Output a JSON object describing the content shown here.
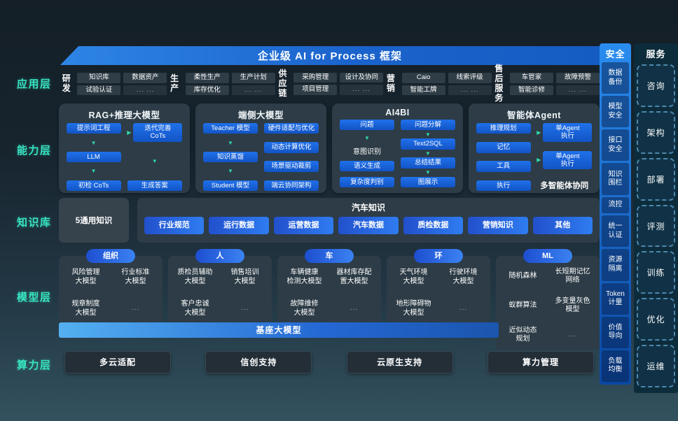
{
  "banner": {
    "title": "企业级 AI for Process 框架"
  },
  "icons": {
    "arrow_down": "▼",
    "arrow_right": "▶"
  },
  "layer_labels": [
    "应用层",
    "能力层",
    "知识库",
    "模型层",
    "算力层"
  ],
  "app": {
    "sections": [
      {
        "label": "研发",
        "cols": [
          [
            "知识库",
            "试验认证"
          ],
          [
            "数据资产",
            "... ..."
          ]
        ]
      },
      {
        "label": "生产",
        "cols": [
          [
            "柔性生产",
            "库存优化"
          ],
          [
            "生产计划",
            "... ..."
          ]
        ]
      },
      {
        "label": "供应\n链",
        "cols": [
          [
            "采购管理",
            "项目管理"
          ],
          [
            "设计及协同",
            "... ..."
          ]
        ]
      },
      {
        "label": "营销",
        "cols": [
          [
            "Caio",
            "智能工牌"
          ],
          [
            "线索评级",
            "... ..."
          ]
        ]
      },
      {
        "label": "售后\n服务",
        "cols": [
          [
            "车管家",
            "智能诊修"
          ],
          [
            "故障预警",
            "... ..."
          ]
        ]
      }
    ]
  },
  "capability": {
    "cards": [
      {
        "title": "RAG+推理大模型",
        "cols": [
          {
            "items": [
              {
                "t": "box",
                "v": "提示词工程"
              },
              {
                "t": "darr"
              },
              {
                "t": "box",
                "v": "LLM"
              },
              {
                "t": "darr"
              },
              {
                "t": "box",
                "v": "初检 CoTs"
              }
            ]
          },
          {
            "items": [
              {
                "t": "boxr",
                "v": "迭代完善\nCoTs"
              },
              {
                "t": "darr"
              },
              {
                "t": "box",
                "v": "生成答案"
              }
            ]
          }
        ]
      },
      {
        "title": "端侧大模型",
        "cols": [
          {
            "items": [
              {
                "t": "box",
                "v": "Teacher 模型"
              },
              {
                "t": "darr"
              },
              {
                "t": "box",
                "v": "知识蒸馏"
              },
              {
                "t": "darr"
              },
              {
                "t": "box",
                "v": "Student 模型"
              }
            ]
          },
          {
            "items": [
              {
                "t": "box",
                "v": "硬件适配与优化"
              },
              {
                "t": "box",
                "v": "动态计算优化"
              },
              {
                "t": "box",
                "v": "场景驱动裁剪"
              },
              {
                "t": "box",
                "v": "端云协同架构"
              }
            ]
          }
        ]
      },
      {
        "title": "AI4BI",
        "cols": [
          {
            "items": [
              {
                "t": "box",
                "v": "问题"
              },
              {
                "t": "darr"
              },
              {
                "t": "text",
                "v": "意图识别"
              },
              {
                "t": "box",
                "v": "语义生成"
              },
              {
                "t": "box",
                "v": "复杂度判别"
              }
            ]
          },
          {
            "items": [
              {
                "t": "box",
                "v": "问题分解"
              },
              {
                "t": "darr"
              },
              {
                "t": "box",
                "v": "Text2SQL"
              },
              {
                "t": "darr"
              },
              {
                "t": "box",
                "v": "总结结果"
              },
              {
                "t": "darr"
              },
              {
                "t": "box",
                "v": "图展示"
              }
            ]
          }
        ]
      },
      {
        "title": "智能体Agent",
        "cols": [
          {
            "items": [
              {
                "t": "box",
                "v": "推理规划"
              },
              {
                "t": "box",
                "v": "记忆"
              },
              {
                "t": "box",
                "v": "工具"
              },
              {
                "t": "box",
                "v": "执行"
              }
            ]
          },
          {
            "items": [
              {
                "t": "boxr",
                "v": "单Agent\n执行"
              },
              {
                "t": "boxr",
                "v": "单Agent\n执行"
              },
              {
                "t": "note",
                "v": "多智能体协同"
              }
            ]
          }
        ]
      }
    ]
  },
  "knowledge": {
    "left": "5通用知识",
    "title": "汽车知识",
    "pills": [
      "行业规范",
      "运行数据",
      "运营数据",
      "汽车数据",
      "质检数据",
      "营销知识",
      "其他"
    ]
  },
  "model": {
    "groups": [
      {
        "pill": "组织",
        "items": [
          "风险管理\n大模型",
          "行业标准\n大模型",
          "规章制度\n大模型",
          "..."
        ]
      },
      {
        "pill": "人",
        "items": [
          "质检员辅助\n大模型",
          "销售培训\n大模型",
          "客户忠诚\n大模型",
          "..."
        ]
      },
      {
        "pill": "车",
        "items": [
          "车辆健康\n检测大模型",
          "器材库存配\n置大模型",
          "故障维修\n大模型",
          "..."
        ]
      },
      {
        "pill": "环",
        "items": [
          "天气环境\n大模型",
          "行驶环境\n大模型",
          "地形障碍物\n大模型",
          "..."
        ]
      },
      {
        "pill": "ML",
        "tall": true,
        "items": [
          "随机森林",
          "长短期记忆\n网络",
          "蚁群算法",
          "多变量灰色\n模型",
          "近似动态\n规划",
          "..."
        ]
      }
    ],
    "base_bar": "基座大模型"
  },
  "compute": {
    "boxes": [
      "多云适配",
      "信创支持",
      "云原生支持",
      "算力管理"
    ]
  },
  "security": {
    "header": "安全",
    "items": [
      "数据\n备份",
      "模型\n安全",
      "接口\n安全",
      "知识\n围栏",
      "流控",
      "统一\n认证",
      "资源\n隔离",
      "Token\n计量",
      "价值\n导向",
      "负载\n均衡"
    ]
  },
  "service": {
    "header": "服务",
    "items": [
      "咨询",
      "架构",
      "部署",
      "评测",
      "训练",
      "优化",
      "运维"
    ]
  },
  "colors": {
    "accent_teal": "#38e5c3",
    "box_blue": "#1d6ae4",
    "pill_blue": "#2f7cf0",
    "strip_blue": "#1a78e0"
  }
}
